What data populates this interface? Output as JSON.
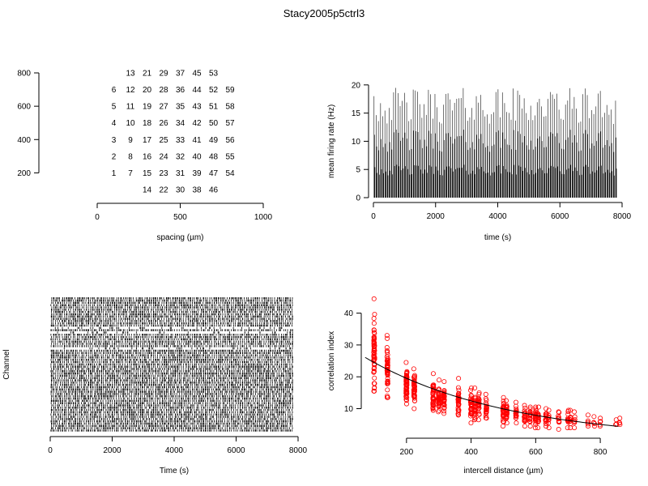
{
  "title": "Stacy2005p5ctrl3",
  "chart_data": [
    {
      "type": "scatter",
      "panel": "electrode layout",
      "xlabel": "spacing (µm)",
      "ylabel": "",
      "xlim": [
        0,
        1000
      ],
      "ylim": [
        100,
        850
      ],
      "x_ticks": [
        0,
        500,
        1000
      ],
      "y_ticks": [
        200,
        400,
        600,
        800
      ],
      "marker": "text",
      "electrodes": [
        {
          "id": "1",
          "x": 100,
          "y": 200
        },
        {
          "id": "2",
          "x": 100,
          "y": 300
        },
        {
          "id": "3",
          "x": 100,
          "y": 400
        },
        {
          "id": "4",
          "x": 100,
          "y": 500
        },
        {
          "id": "5",
          "x": 100,
          "y": 600
        },
        {
          "id": "6",
          "x": 100,
          "y": 700
        },
        {
          "id": "7",
          "x": 200,
          "y": 200
        },
        {
          "id": "8",
          "x": 200,
          "y": 300
        },
        {
          "id": "9",
          "x": 200,
          "y": 400
        },
        {
          "id": "10",
          "x": 200,
          "y": 500
        },
        {
          "id": "11",
          "x": 200,
          "y": 600
        },
        {
          "id": "12",
          "x": 200,
          "y": 700
        },
        {
          "id": "13",
          "x": 200,
          "y": 800
        },
        {
          "id": "14",
          "x": 300,
          "y": 100
        },
        {
          "id": "15",
          "x": 300,
          "y": 200
        },
        {
          "id": "16",
          "x": 300,
          "y": 300
        },
        {
          "id": "17",
          "x": 300,
          "y": 400
        },
        {
          "id": "18",
          "x": 300,
          "y": 500
        },
        {
          "id": "19",
          "x": 300,
          "y": 600
        },
        {
          "id": "20",
          "x": 300,
          "y": 700
        },
        {
          "id": "21",
          "x": 300,
          "y": 800
        },
        {
          "id": "22",
          "x": 400,
          "y": 100
        },
        {
          "id": "23",
          "x": 400,
          "y": 200
        },
        {
          "id": "24",
          "x": 400,
          "y": 300
        },
        {
          "id": "25",
          "x": 400,
          "y": 400
        },
        {
          "id": "26",
          "x": 400,
          "y": 500
        },
        {
          "id": "27",
          "x": 400,
          "y": 600
        },
        {
          "id": "28",
          "x": 400,
          "y": 700
        },
        {
          "id": "29",
          "x": 400,
          "y": 800
        },
        {
          "id": "30",
          "x": 500,
          "y": 100
        },
        {
          "id": "31",
          "x": 500,
          "y": 200
        },
        {
          "id": "32",
          "x": 500,
          "y": 300
        },
        {
          "id": "33",
          "x": 500,
          "y": 400
        },
        {
          "id": "34",
          "x": 500,
          "y": 500
        },
        {
          "id": "35",
          "x": 500,
          "y": 600
        },
        {
          "id": "36",
          "x": 500,
          "y": 700
        },
        {
          "id": "37",
          "x": 500,
          "y": 800
        },
        {
          "id": "38",
          "x": 600,
          "y": 100
        },
        {
          "id": "39",
          "x": 600,
          "y": 200
        },
        {
          "id": "40",
          "x": 600,
          "y": 300
        },
        {
          "id": "41",
          "x": 600,
          "y": 400
        },
        {
          "id": "42",
          "x": 600,
          "y": 500
        },
        {
          "id": "43",
          "x": 600,
          "y": 600
        },
        {
          "id": "44",
          "x": 600,
          "y": 700
        },
        {
          "id": "45",
          "x": 600,
          "y": 800
        },
        {
          "id": "46",
          "x": 700,
          "y": 100
        },
        {
          "id": "47",
          "x": 700,
          "y": 200
        },
        {
          "id": "48",
          "x": 700,
          "y": 300
        },
        {
          "id": "49",
          "x": 700,
          "y": 400
        },
        {
          "id": "50",
          "x": 700,
          "y": 500
        },
        {
          "id": "51",
          "x": 700,
          "y": 600
        },
        {
          "id": "52",
          "x": 700,
          "y": 700
        },
        {
          "id": "53",
          "x": 700,
          "y": 800
        },
        {
          "id": "54",
          "x": 800,
          "y": 200
        },
        {
          "id": "55",
          "x": 800,
          "y": 300
        },
        {
          "id": "56",
          "x": 800,
          "y": 400
        },
        {
          "id": "57",
          "x": 800,
          "y": 500
        },
        {
          "id": "58",
          "x": 800,
          "y": 600
        },
        {
          "id": "59",
          "x": 800,
          "y": 700
        }
      ]
    },
    {
      "type": "bar",
      "panel": "mean firing rate",
      "xlabel": "time (s)",
      "ylabel": "mean firing rate (Hz)",
      "xlim": [
        0,
        8000
      ],
      "ylim": [
        0,
        24
      ],
      "x_ticks": [
        0,
        2000,
        4000,
        6000,
        8000
      ],
      "y_ticks": [
        0,
        5,
        10,
        15,
        20
      ],
      "bin_width_s": 10,
      "burst_period_s": 70,
      "burst_start_s": 20,
      "burst_end_s": 7840,
      "burst_peak_range_hz": [
        13,
        23.5
      ],
      "shading": "nearly black",
      "burst_values": [
        {
          "t": 20,
          "rate": 18
        },
        {
          "t": 220,
          "rate": 19.5
        },
        {
          "t": 800,
          "rate": 23.5
        },
        {
          "t": 1500,
          "rate": 19
        },
        {
          "t": 2440,
          "rate": 19.5
        },
        {
          "t": 3220,
          "rate": 23
        },
        {
          "t": 4120,
          "rate": 18.5
        },
        {
          "t": 6440,
          "rate": 19.5
        }
      ]
    },
    {
      "type": "raster",
      "panel": "spike raster",
      "xlabel": "Time (s)",
      "ylabel": "Channel",
      "xlim": [
        0,
        8000
      ],
      "x_ticks": [
        0,
        2000,
        4000,
        6000,
        8000
      ],
      "channels": 59,
      "burst_period_s": 70,
      "first_burst_s": 20,
      "last_burst_s": 7840,
      "sparse_channel_fractions": [
        0.38,
        0.22,
        0.26
      ]
    },
    {
      "type": "scatter",
      "panel": "correlation index",
      "xlabel": "intercell distance (µm)",
      "ylabel": "correlation index",
      "xlim": [
        60,
        870
      ],
      "ylim": [
        3,
        46
      ],
      "x_ticks": [
        200,
        400,
        600,
        800
      ],
      "y_ticks": [
        10,
        20,
        30,
        40
      ],
      "distance_groups": [
        {
          "d": 100,
          "mean": 27,
          "min": 15.5,
          "max": 44.5,
          "n": 60
        },
        {
          "d": 141,
          "mean": 22.5,
          "min": 13.5,
          "max": 33,
          "n": 55
        },
        {
          "d": 200,
          "mean": 17,
          "min": 11.5,
          "max": 24.5,
          "n": 60
        },
        {
          "d": 224,
          "mean": 17,
          "min": 10,
          "max": 22.5,
          "n": 50
        },
        {
          "d": 283,
          "mean": 14,
          "min": 9.5,
          "max": 21,
          "n": 40
        },
        {
          "d": 300,
          "mean": 13.5,
          "min": 9,
          "max": 19,
          "n": 40
        },
        {
          "d": 316,
          "mean": 13.5,
          "min": 8.5,
          "max": 18.5,
          "n": 35
        },
        {
          "d": 361,
          "mean": 12,
          "min": 8,
          "max": 19.5,
          "n": 35
        },
        {
          "d": 400,
          "mean": 11.5,
          "min": 5.5,
          "max": 16.5,
          "n": 35
        },
        {
          "d": 412,
          "mean": 11,
          "min": 6.5,
          "max": 16.5,
          "n": 35
        },
        {
          "d": 424,
          "mean": 11,
          "min": 6.5,
          "max": 15,
          "n": 25
        },
        {
          "d": 447,
          "mean": 10,
          "min": 7,
          "max": 14.5,
          "n": 25
        },
        {
          "d": 500,
          "mean": 9,
          "min": 4.5,
          "max": 13.5,
          "n": 30
        },
        {
          "d": 510,
          "mean": 9,
          "min": 5.5,
          "max": 12.5,
          "n": 25
        },
        {
          "d": 539,
          "mean": 8.5,
          "min": 5.5,
          "max": 12,
          "n": 20
        },
        {
          "d": 566,
          "mean": 8,
          "min": 4.5,
          "max": 11,
          "n": 20
        },
        {
          "d": 583,
          "mean": 8,
          "min": 4.5,
          "max": 10.5,
          "n": 20
        },
        {
          "d": 600,
          "mean": 7.5,
          "min": 4,
          "max": 10.5,
          "n": 20
        },
        {
          "d": 608,
          "mean": 7.5,
          "min": 4,
          "max": 10.5,
          "n": 15
        },
        {
          "d": 632,
          "mean": 7,
          "min": 4.5,
          "max": 10,
          "n": 15
        },
        {
          "d": 640,
          "mean": 7,
          "min": 4,
          "max": 9.5,
          "n": 12
        },
        {
          "d": 671,
          "mean": 6.5,
          "min": 3.5,
          "max": 9,
          "n": 12
        },
        {
          "d": 700,
          "mean": 6.5,
          "min": 4,
          "max": 9.5,
          "n": 12
        },
        {
          "d": 707,
          "mean": 6.5,
          "min": 4,
          "max": 9.5,
          "n": 10
        },
        {
          "d": 721,
          "mean": 6.5,
          "min": 4,
          "max": 9,
          "n": 8
        },
        {
          "d": 761,
          "mean": 6,
          "min": 4.5,
          "max": 8,
          "n": 6
        },
        {
          "d": 781,
          "mean": 6,
          "min": 4.5,
          "max": 7.5,
          "n": 5
        },
        {
          "d": 800,
          "mean": 5.5,
          "min": 4.5,
          "max": 7,
          "n": 5
        },
        {
          "d": 849,
          "mean": 5.5,
          "min": 5,
          "max": 6.5,
          "n": 3
        },
        {
          "d": 860,
          "mean": 6,
          "min": 5,
          "max": 7,
          "n": 4
        }
      ],
      "fit_curve": {
        "a": 30.7,
        "b": 0.00226,
        "x_range": [
          72,
          860
        ]
      },
      "point_color": "#ff0000",
      "line_color": "#000000",
      "marker": "open circle"
    }
  ]
}
